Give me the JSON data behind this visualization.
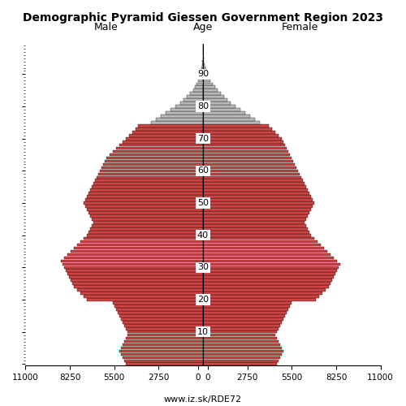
{
  "title": "Demographic Pyramid Giessen Government Region 2023",
  "label_male": "Male",
  "label_female": "Female",
  "label_age": "Age",
  "website": "www.iz.sk/RDE72",
  "xlim": 11000,
  "color_young": "#cc4444",
  "color_old": "#b8b8b8",
  "age_threshold": 75,
  "ages": [
    0,
    1,
    2,
    3,
    4,
    5,
    6,
    7,
    8,
    9,
    10,
    11,
    12,
    13,
    14,
    15,
    16,
    17,
    18,
    19,
    20,
    21,
    22,
    23,
    24,
    25,
    26,
    27,
    28,
    29,
    30,
    31,
    32,
    33,
    34,
    35,
    36,
    37,
    38,
    39,
    40,
    41,
    42,
    43,
    44,
    45,
    46,
    47,
    48,
    49,
    50,
    51,
    52,
    53,
    54,
    55,
    56,
    57,
    58,
    59,
    60,
    61,
    62,
    63,
    64,
    65,
    66,
    67,
    68,
    69,
    70,
    71,
    72,
    73,
    74,
    75,
    76,
    77,
    78,
    79,
    80,
    81,
    82,
    83,
    84,
    85,
    86,
    87,
    88,
    89,
    90,
    91,
    92,
    93,
    94,
    95,
    96,
    97,
    98,
    99
  ],
  "male": [
    4800,
    4900,
    5000,
    5100,
    5200,
    5100,
    5000,
    4900,
    4800,
    4700,
    4700,
    4800,
    4900,
    5000,
    5100,
    5200,
    5300,
    5400,
    5500,
    5600,
    7200,
    7400,
    7600,
    7800,
    8000,
    8100,
    8200,
    8300,
    8400,
    8500,
    8600,
    8700,
    8800,
    8600,
    8400,
    8200,
    8000,
    7800,
    7600,
    7400,
    7200,
    7100,
    7000,
    6900,
    6800,
    6900,
    7000,
    7100,
    7200,
    7300,
    7400,
    7300,
    7200,
    7100,
    7000,
    6900,
    6800,
    6700,
    6600,
    6500,
    6400,
    6300,
    6200,
    6100,
    6000,
    5800,
    5600,
    5400,
    5200,
    5000,
    4800,
    4600,
    4400,
    4200,
    4000,
    3200,
    2900,
    2600,
    2300,
    2000,
    1700,
    1400,
    1200,
    1000,
    800,
    600,
    500,
    400,
    300,
    200,
    150,
    100,
    80,
    60,
    40,
    25,
    20,
    15,
    10,
    5
  ],
  "female": [
    4600,
    4700,
    4800,
    4900,
    5000,
    4900,
    4800,
    4700,
    4600,
    4500,
    4600,
    4700,
    4800,
    4900,
    5000,
    5100,
    5200,
    5300,
    5400,
    5500,
    7000,
    7200,
    7400,
    7600,
    7800,
    7900,
    8000,
    8100,
    8200,
    8300,
    8400,
    8500,
    8300,
    8100,
    7900,
    7700,
    7500,
    7300,
    7100,
    6900,
    6700,
    6600,
    6500,
    6400,
    6300,
    6400,
    6500,
    6600,
    6700,
    6800,
    6900,
    6800,
    6700,
    6600,
    6500,
    6400,
    6300,
    6200,
    6100,
    6000,
    5900,
    5800,
    5700,
    5600,
    5500,
    5400,
    5300,
    5200,
    5100,
    5000,
    4900,
    4700,
    4500,
    4300,
    4100,
    3500,
    3200,
    2900,
    2600,
    2300,
    2000,
    1700,
    1500,
    1300,
    1100,
    900,
    750,
    600,
    450,
    350,
    250,
    180,
    130,
    90,
    60,
    40,
    25,
    15,
    10,
    5
  ],
  "xtick_positions": [
    -11000,
    -8250,
    -5500,
    -2750,
    -300,
    300,
    2750,
    5500,
    8250,
    11000
  ],
  "xtick_labels": [
    "11000",
    "8250",
    "5500",
    "2750",
    "0",
    "0",
    "2750",
    "5500",
    "8250",
    "11000"
  ]
}
